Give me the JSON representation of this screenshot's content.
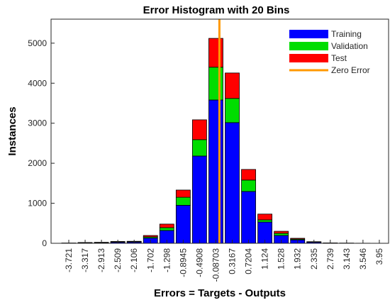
{
  "chart_data": {
    "type": "stacked-bar",
    "title": "Error Histogram with 20 Bins",
    "x_label": "Errors = Targets - Outputs",
    "y_label": "Instances",
    "categories": [
      "-3.721",
      "-3.317",
      "-2.913",
      "-2.509",
      "-2.106",
      "-1.702",
      "-1.298",
      "-0.8945",
      "-0.4908",
      "-0.08703",
      "0.3167",
      "0.7204",
      "1.124",
      "1.528",
      "1.932",
      "2.335",
      "2.739",
      "3.143",
      "3.546",
      "3.95"
    ],
    "series": [
      {
        "name": "Training",
        "color": "#0000ff",
        "values": [
          4,
          12,
          15,
          25,
          30,
          130,
          320,
          950,
          2180,
          3580,
          3015,
          1295,
          530,
          195,
          85,
          25,
          6,
          3,
          2,
          1
        ]
      },
      {
        "name": "Validation",
        "color": "#00dd00",
        "values": [
          1,
          4,
          5,
          10,
          10,
          30,
          70,
          200,
          410,
          820,
          605,
          285,
          55,
          55,
          20,
          8,
          2,
          1,
          1,
          0
        ]
      },
      {
        "name": "Test",
        "color": "#ff0000",
        "values": [
          1,
          4,
          5,
          10,
          10,
          35,
          90,
          180,
          495,
          720,
          635,
          265,
          145,
          50,
          20,
          7,
          2,
          1,
          0,
          1
        ]
      }
    ],
    "reference_line": {
      "name": "Zero Error",
      "value": 0,
      "color": "#ff9900"
    },
    "ylim": [
      0,
      5600
    ],
    "yticks": [
      0,
      1000,
      2000,
      3000,
      4000,
      5000
    ],
    "legend": "top-right"
  }
}
